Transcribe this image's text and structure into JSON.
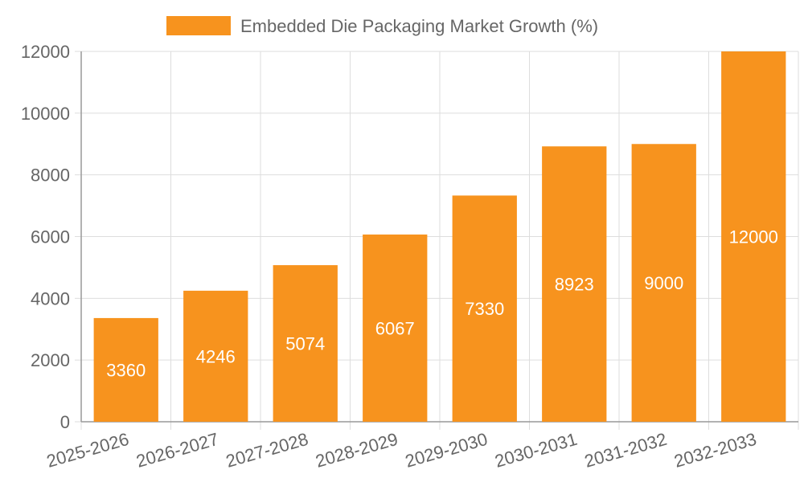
{
  "chart_data": {
    "type": "bar",
    "categories": [
      "2025-2026",
      "2026-2027",
      "2027-2028",
      "2028-2029",
      "2029-2030",
      "2030-2031",
      "2031-2032",
      "2032-2033"
    ],
    "series": [
      {
        "name": "Embedded Die Packaging Market Growth (%)",
        "values": [
          3360,
          4246,
          5074,
          6067,
          7330,
          8923,
          9000,
          12000
        ],
        "color": "#f7931e"
      }
    ],
    "ylim": [
      0,
      12000
    ],
    "yticks": [
      0,
      2000,
      4000,
      6000,
      8000,
      10000,
      12000
    ],
    "grid": true,
    "legend_position": "top",
    "data_labels": true
  }
}
